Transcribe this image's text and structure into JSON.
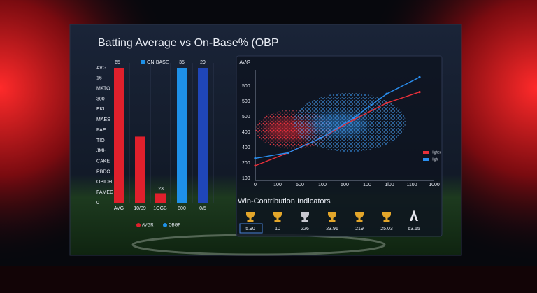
{
  "chart_data": [
    {
      "type": "bar",
      "title": "Batting Average vs On-Base% (OBP",
      "categories": [
        "AVG",
        "10/09",
        "1OGB",
        "800",
        "0/5"
      ],
      "values": [
        100,
        49,
        7,
        100,
        100
      ],
      "colors": [
        "#e0202c",
        "#e0202c",
        "#e0202c",
        "#1e90e8",
        "#1f46b8"
      ],
      "ylim": [
        0,
        100
      ],
      "y_labels": [
        "AVG",
        "16",
        "MATO",
        "300",
        "EKI",
        "MAES",
        "PAE",
        "TIO",
        "JMH",
        "CAKE",
        "PBDO",
        "OBIDH",
        "FAMEG",
        "0"
      ],
      "annotations": [
        "65",
        "35",
        "29",
        "23"
      ],
      "top_legend": "ON-BASE",
      "legend": [
        "AVGR",
        "OBGP"
      ]
    },
    {
      "type": "line",
      "y_axis_label": "AVG",
      "x": [
        0,
        200,
        400,
        600,
        800,
        1000
      ],
      "series": [
        {
          "name": "Higher",
          "color": "#e8303a",
          "values": [
            80,
            150,
            230,
            330,
            420,
            480
          ]
        },
        {
          "name": "High",
          "color": "#2a8ff0",
          "values": [
            120,
            150,
            230,
            340,
            470,
            560
          ]
        }
      ],
      "xlim": [
        0,
        1000
      ],
      "ylim": [
        0,
        600
      ],
      "y_labels": [
        "500",
        "500",
        "500",
        "400",
        "400",
        "200",
        "100"
      ],
      "x_labels": [
        "0",
        "100",
        "500",
        "100",
        "500",
        "100",
        "1l00",
        "1100",
        "1000"
      ]
    }
  ],
  "indicators": {
    "title": "Win-Contribution Indicators",
    "items": [
      "5.90",
      "10",
      "226",
      "23.91",
      "219",
      "25.03",
      "63.15"
    ]
  }
}
